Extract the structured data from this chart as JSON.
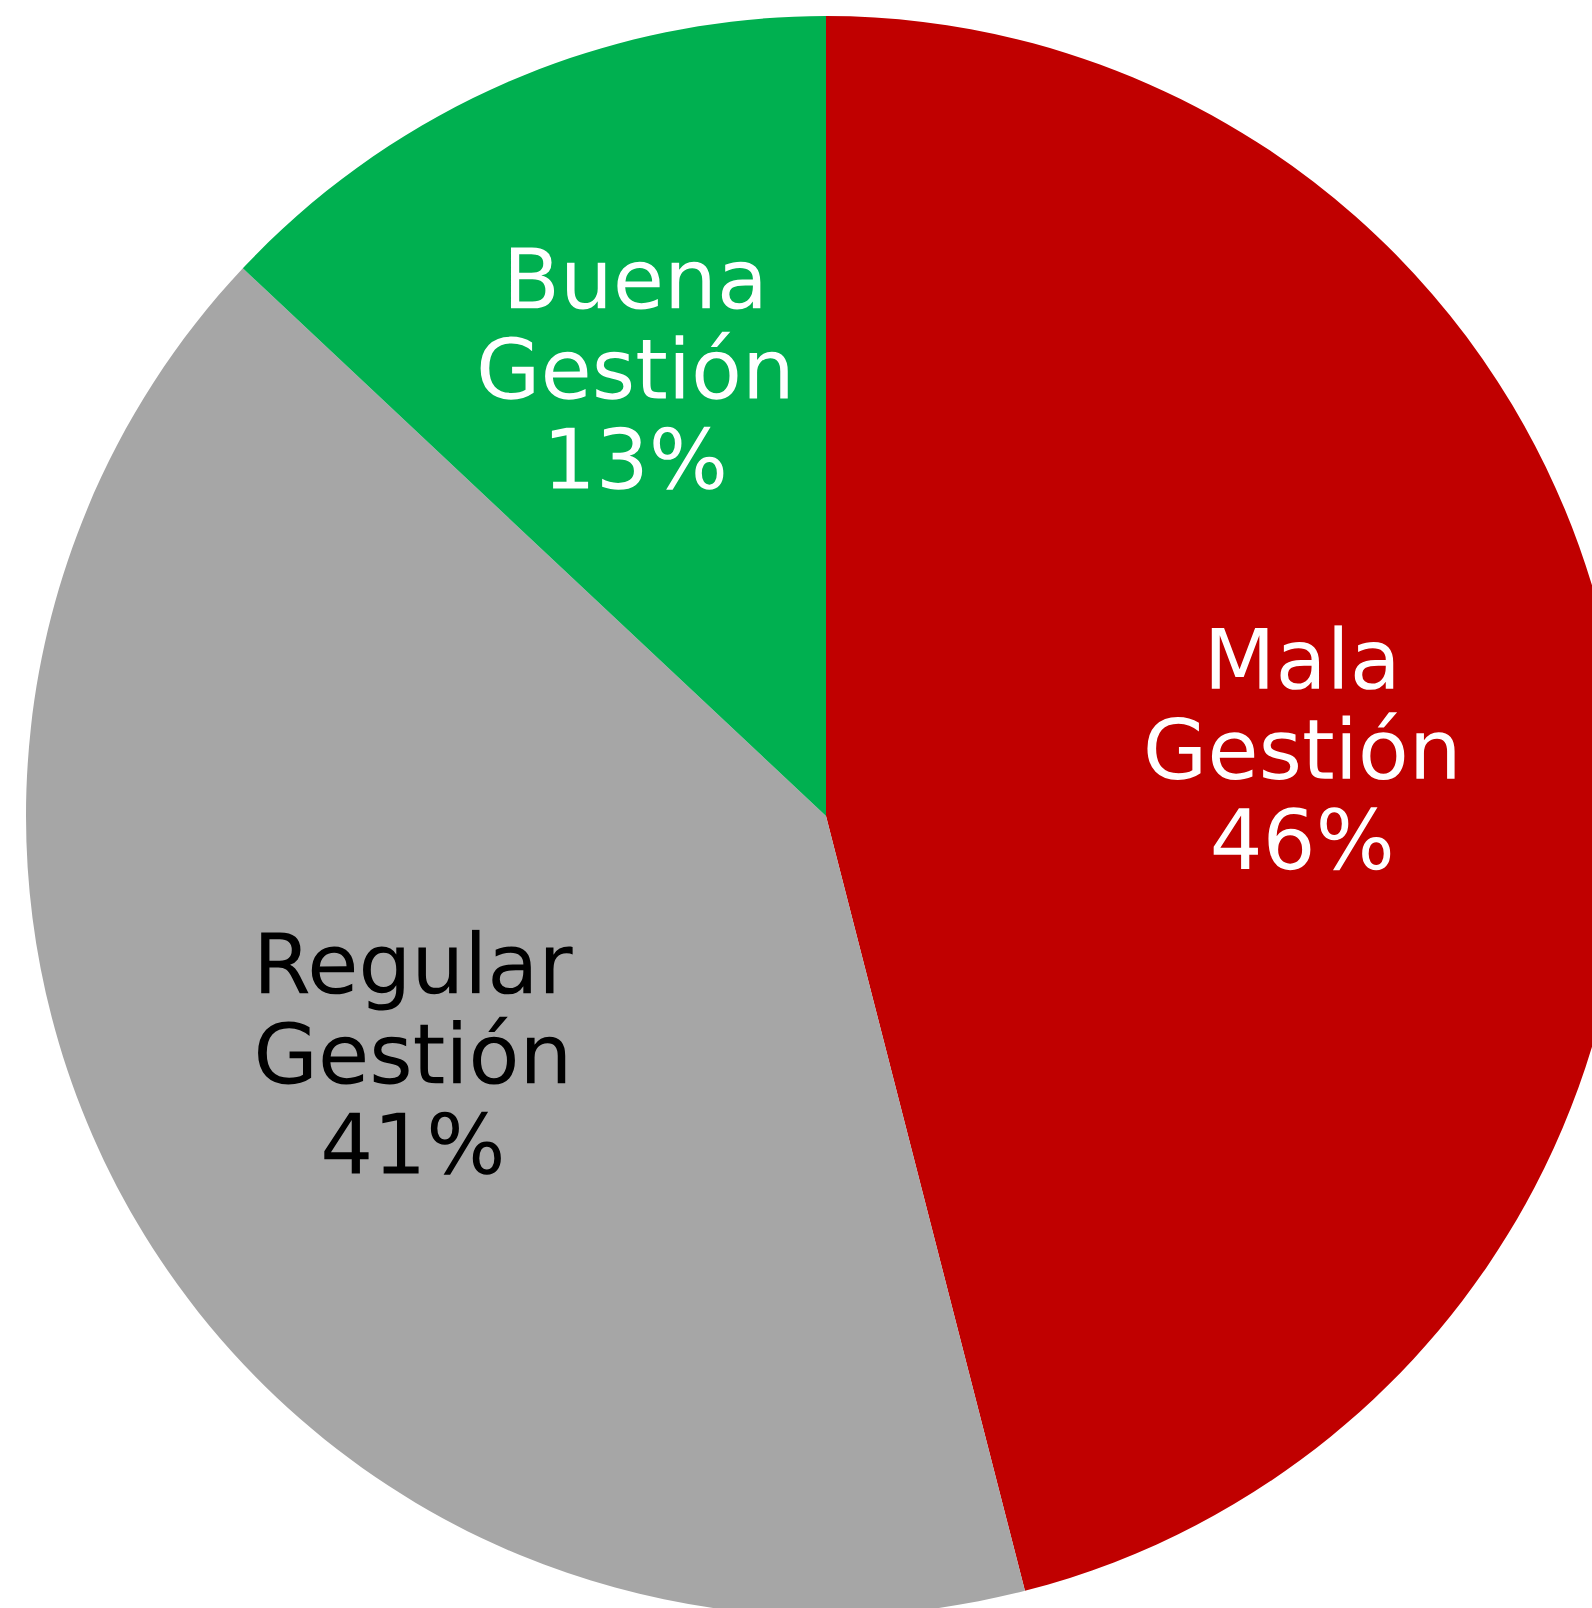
{
  "chart_data": {
    "type": "pie",
    "categories": [
      "Mala\nGestión",
      "Regular\nGestión",
      "Buena\nGestión"
    ],
    "values": [
      46,
      41,
      13
    ],
    "value_labels": [
      "46%",
      "41%",
      "13%"
    ],
    "colors": [
      "#c00000",
      "#a6a6a6",
      "#00b050"
    ]
  }
}
